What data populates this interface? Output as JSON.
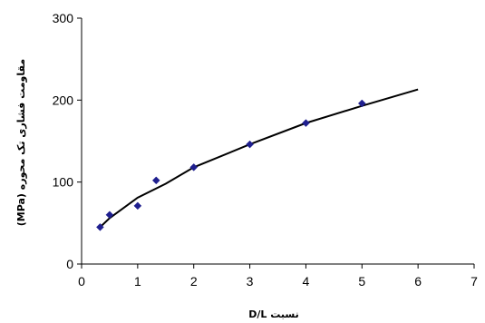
{
  "chart_data": {
    "type": "scatter",
    "title": "",
    "xlabel": "نسبت D/L",
    "ylabel": "مقاومت فشاری تک محوره (MPa)",
    "xlim": [
      0,
      7
    ],
    "ylim": [
      0,
      300
    ],
    "x_ticks": [
      "0",
      "1",
      "2",
      "3",
      "4",
      "5",
      "6",
      "7"
    ],
    "y_ticks": [
      "0",
      "100",
      "200",
      "300"
    ],
    "grid": false,
    "legend": "none",
    "series": [
      {
        "marker": "diamond",
        "color": "#1f1f8f",
        "points": [
          {
            "x": 0.33,
            "y": 45
          },
          {
            "x": 0.5,
            "y": 60
          },
          {
            "x": 1.0,
            "y": 71
          },
          {
            "x": 1.33,
            "y": 102
          },
          {
            "x": 2.0,
            "y": 118
          },
          {
            "x": 3.0,
            "y": 146
          },
          {
            "x": 4.0,
            "y": 172
          },
          {
            "x": 5.0,
            "y": 196
          }
        ]
      }
    ],
    "trendline": {
      "type": "power",
      "color": "#000000",
      "x_range": [
        0.33,
        6.0
      ],
      "points": [
        {
          "x": 0.33,
          "y": 45
        },
        {
          "x": 0.5,
          "y": 56
        },
        {
          "x": 1.0,
          "y": 81
        },
        {
          "x": 1.5,
          "y": 98
        },
        {
          "x": 2.0,
          "y": 118
        },
        {
          "x": 3.0,
          "y": 146
        },
        {
          "x": 4.0,
          "y": 172
        },
        {
          "x": 5.0,
          "y": 193
        },
        {
          "x": 6.0,
          "y": 213
        }
      ]
    }
  }
}
